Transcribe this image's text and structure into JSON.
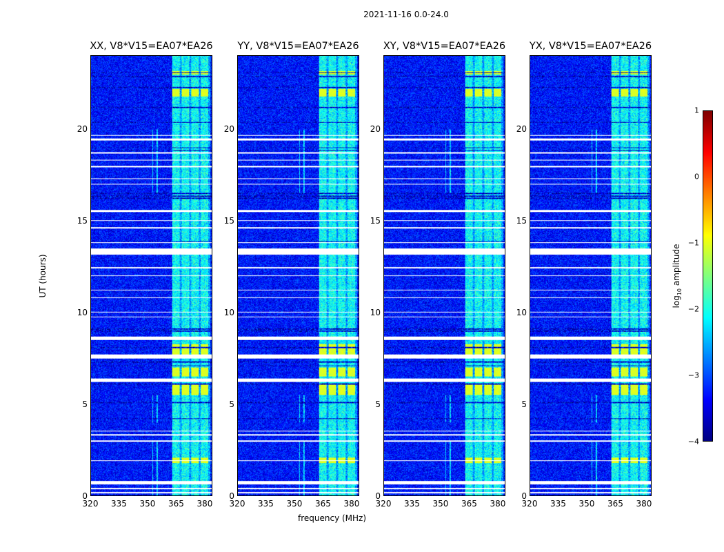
{
  "chart_data": {
    "type": "heatmap",
    "title": "2021-11-16 0.0-24.0",
    "panels": [
      {
        "title": "XX, V8*V15=EA07*EA26"
      },
      {
        "title": "YY, V8*V15=EA07*EA26"
      },
      {
        "title": "XY, V8*V15=EA07*EA26"
      },
      {
        "title": "YX, V8*V15=EA07*EA26"
      }
    ],
    "xlabel": "frequency (MHz)",
    "ylabel": "UT (hours)",
    "xlim": [
      320,
      384
    ],
    "ylim": [
      0,
      24
    ],
    "xticks": [
      "320",
      "335",
      "350",
      "365",
      "380"
    ],
    "yticks": [
      "0",
      "5",
      "10",
      "15",
      "20"
    ],
    "colorbar": {
      "label_main": "log",
      "label_sub": "10",
      "label_rest": " amplitude",
      "range": [
        -4,
        1
      ],
      "ticks": [
        "1",
        "0",
        "−1",
        "−2",
        "−3",
        "−4"
      ],
      "colormap": "jet"
    },
    "background_level": -3.3,
    "rfi_band_mhz": [
      363,
      383
    ]
  }
}
